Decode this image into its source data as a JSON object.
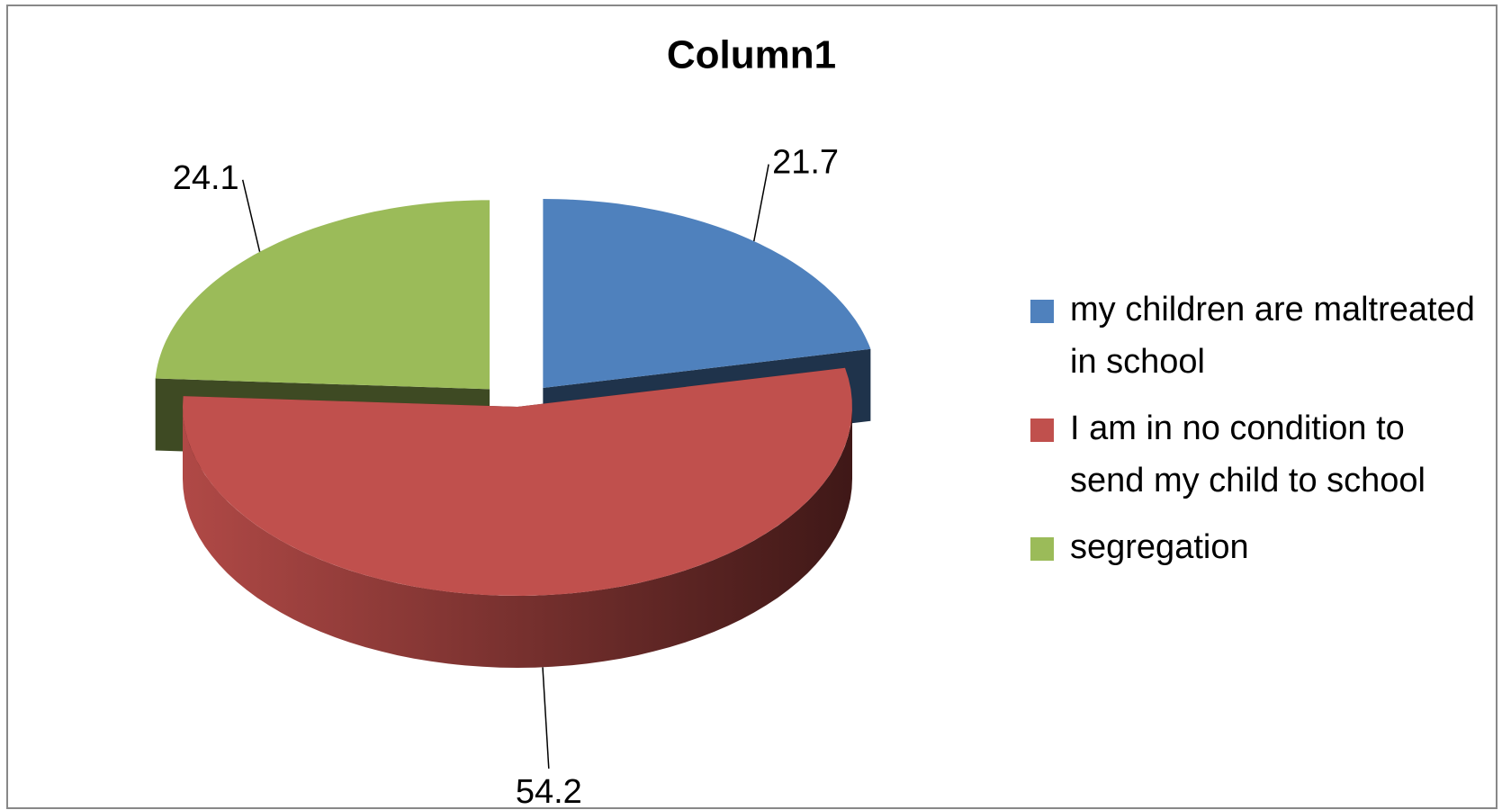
{
  "chart_data": {
    "type": "pie",
    "title": "Column1",
    "categories": [
      "my children are maltreated in school",
      "I am in no condition to send my child to school",
      "segregation"
    ],
    "values": [
      21.7,
      54.2,
      24.1
    ],
    "colors": [
      "#4f81bd",
      "#c0504d",
      "#9bbb59"
    ],
    "legend": "right"
  }
}
